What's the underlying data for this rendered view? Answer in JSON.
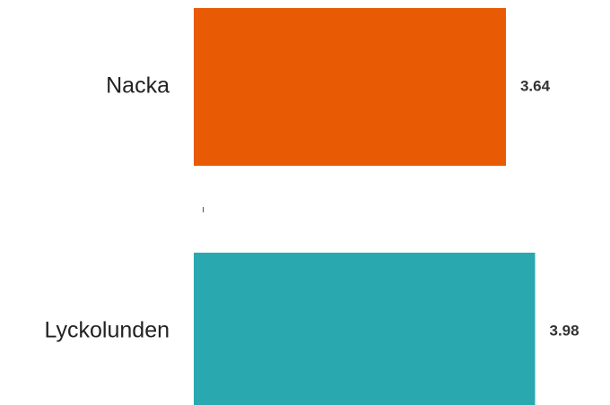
{
  "chart_data": {
    "type": "bar",
    "orientation": "horizontal",
    "title": "",
    "xlabel": "",
    "ylabel": "",
    "categories": [
      "Nacka",
      "Lyckolunden"
    ],
    "values": [
      3.64,
      3.98
    ],
    "value_labels": [
      "3.64",
      "3.98"
    ],
    "colors": [
      "#E85A04",
      "#2AA8B0"
    ],
    "xlim": [
      0,
      4.1
    ],
    "grid": false,
    "legend": "none"
  }
}
